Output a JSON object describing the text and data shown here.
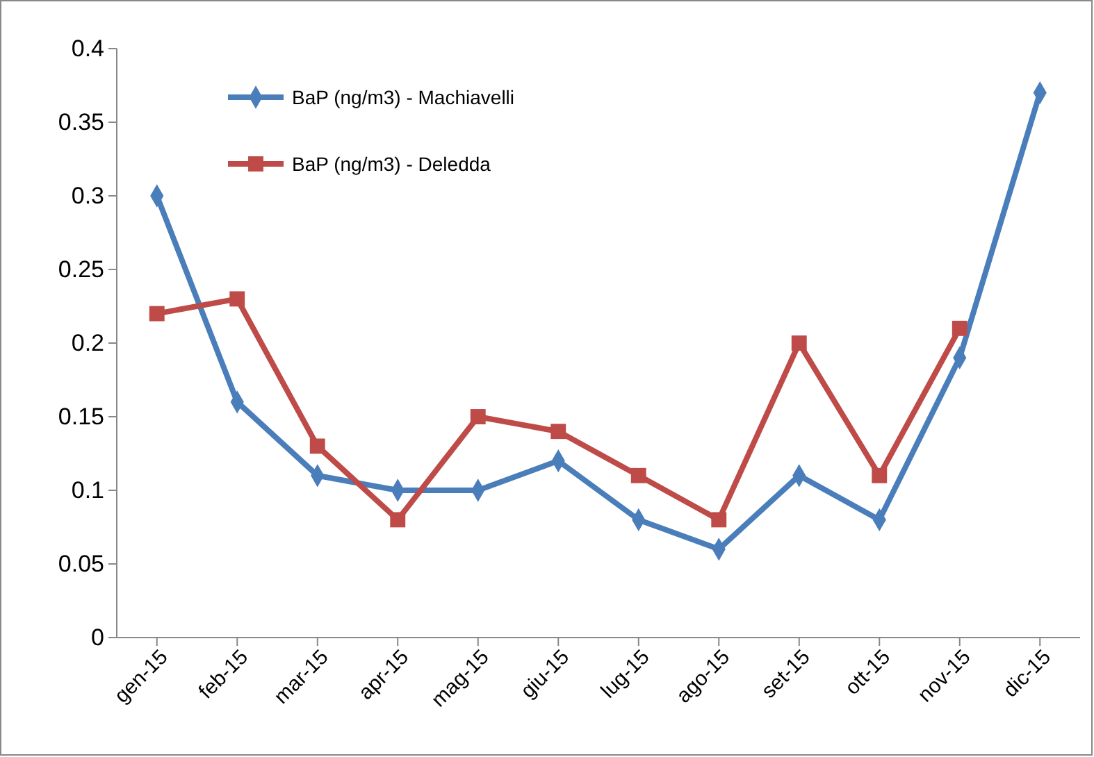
{
  "chart_data": {
    "type": "line",
    "categories": [
      "gen-15",
      "feb-15",
      "mar-15",
      "apr-15",
      "mag-15",
      "giu-15",
      "lug-15",
      "ago-15",
      "set-15",
      "ott-15",
      "nov-15",
      "dic-15"
    ],
    "series": [
      {
        "name": "BaP (ng/m3)  - Machiavelli",
        "color": "#4a7ebb",
        "marker": "diamond",
        "values": [
          0.3,
          0.16,
          0.11,
          0.1,
          0.1,
          0.12,
          0.08,
          0.06,
          0.11,
          0.08,
          0.19,
          0.37
        ]
      },
      {
        "name": "BaP (ng/m3)  - Deledda",
        "color": "#be4b48",
        "marker": "square",
        "values": [
          0.22,
          0.23,
          0.13,
          0.08,
          0.15,
          0.14,
          0.11,
          0.08,
          0.2,
          0.11,
          0.21,
          null
        ]
      }
    ],
    "ylim": [
      0,
      0.4
    ],
    "yticks": [
      0,
      0.05,
      0.1,
      0.15,
      0.2,
      0.25,
      0.3,
      0.35,
      0.4
    ],
    "grid": false,
    "legend": "top left",
    "line_style": "solid"
  }
}
